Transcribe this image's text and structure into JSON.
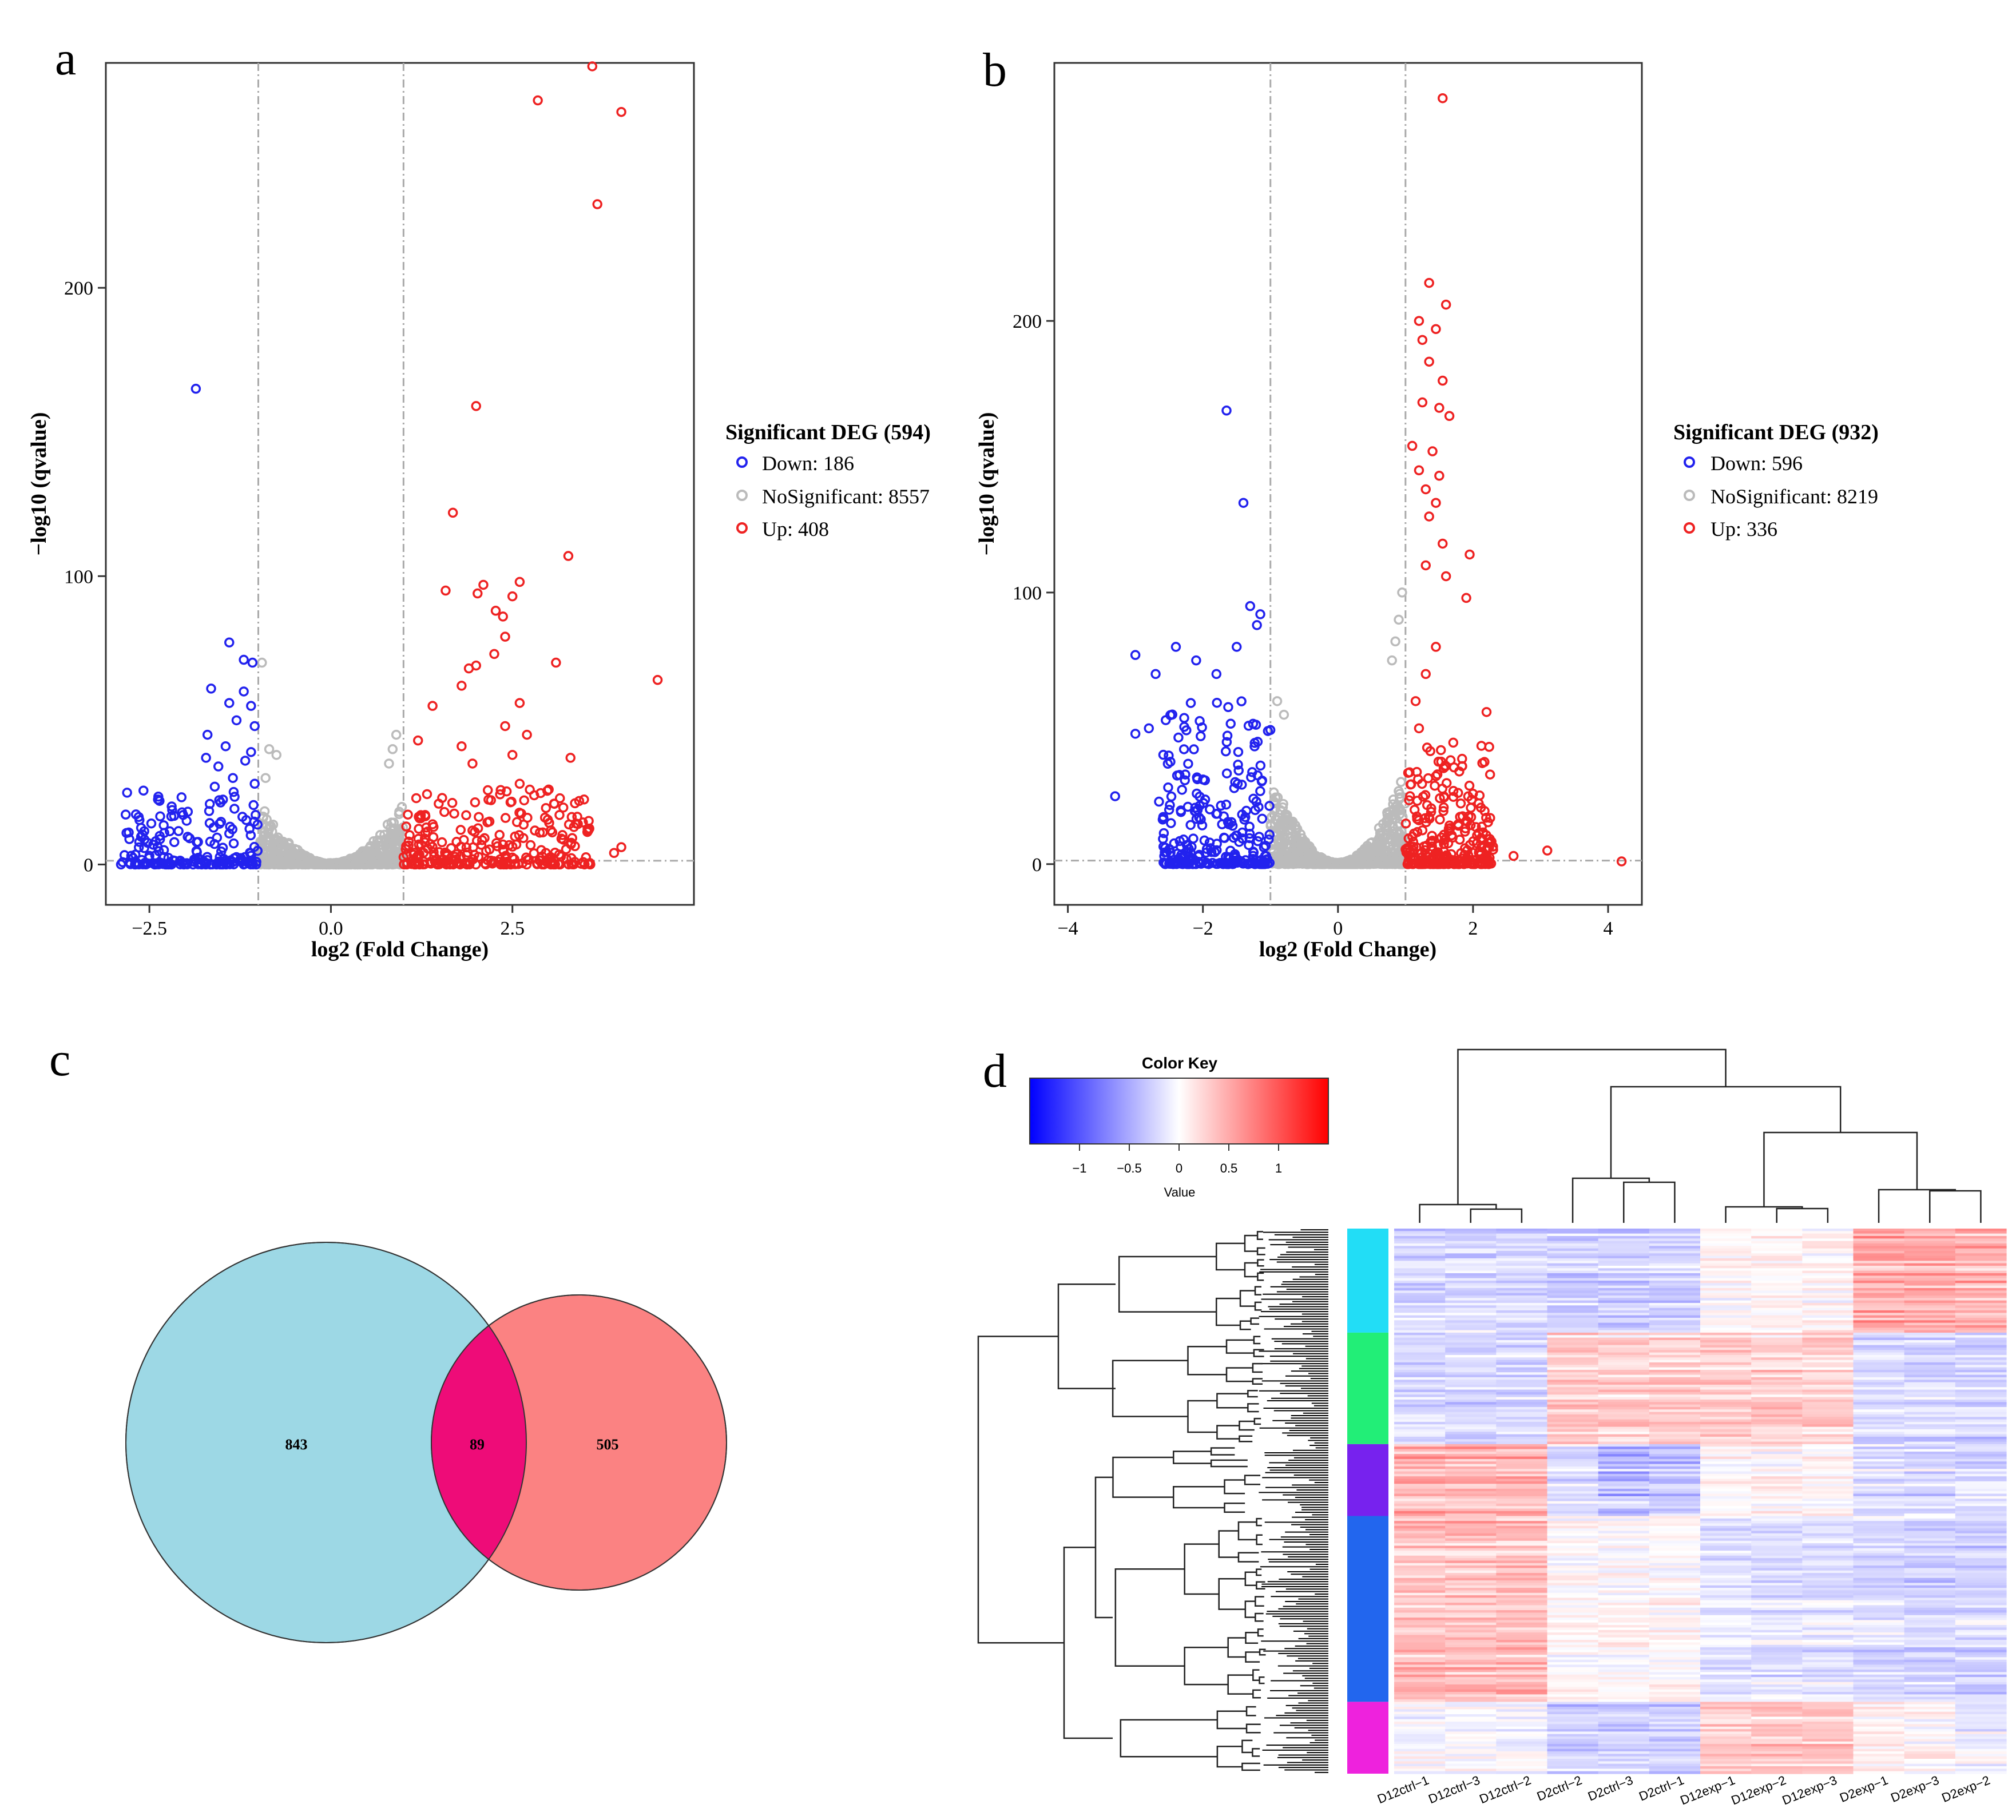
{
  "chart_data": [
    {
      "panel": "a",
      "type": "scatter",
      "subtype": "volcano",
      "xlabel": "log2 (Fold Change)",
      "ylabel": "−log10 (qvalue)",
      "xlim": [
        -3.1,
        5.0
      ],
      "ylim": [
        -14,
        278
      ],
      "xticks": [
        -2.5,
        0.0,
        2.5
      ],
      "xtick_labels": [
        "−2.5",
        "0.0",
        "2.5"
      ],
      "yticks": [
        0,
        100,
        200
      ],
      "ytick_labels": [
        "0",
        "100",
        "200"
      ],
      "thresholds": {
        "fc": [
          -1,
          1
        ],
        "q": 1.3
      },
      "legend": {
        "title": "Significant DEG (594)",
        "entries": [
          {
            "label": "Down: 186",
            "color": "#2222ee"
          },
          {
            "label": "NoSignificant: 8557",
            "color": "#bbbbbb"
          },
          {
            "label": "Up: 408",
            "color": "#ee2222"
          }
        ]
      },
      "series": [
        {
          "name": "Down",
          "color": "#2222ee",
          "n": 186,
          "highlight": [
            [
              -1.86,
              165
            ],
            [
              -1.4,
              77
            ],
            [
              -1.2,
              71
            ],
            [
              -1.08,
              70
            ],
            [
              -1.65,
              61
            ],
            [
              -1.2,
              60
            ],
            [
              -1.4,
              56
            ],
            [
              -1.1,
              55
            ],
            [
              -1.3,
              50
            ],
            [
              -1.05,
              48
            ],
            [
              -1.7,
              45
            ],
            [
              -1.45,
              41
            ],
            [
              -1.1,
              39
            ],
            [
              -1.72,
              37
            ],
            [
              -1.18,
              36
            ],
            [
              -1.55,
              34
            ],
            [
              -1.35,
              30
            ],
            [
              -1.05,
              28
            ],
            [
              -1.6,
              27
            ],
            [
              -2.3,
              5
            ],
            [
              -2.5,
              3
            ],
            [
              -2.75,
              3
            ]
          ],
          "spread": [
            -2.9,
            -1.0,
            0,
            26
          ]
        },
        {
          "name": "NoSignificant",
          "color": "#bbbbbb",
          "n": 8557,
          "highlight": [
            [
              -0.95,
              70
            ],
            [
              -0.85,
              40
            ],
            [
              -0.75,
              38
            ],
            [
              0.9,
              45
            ],
            [
              0.85,
              40
            ],
            [
              0.8,
              35
            ],
            [
              -0.9,
              30
            ]
          ],
          "spread": [
            -1.0,
            1.0,
            0,
            22
          ]
        },
        {
          "name": "Up",
          "color": "#ee2222",
          "n": 408,
          "highlight": [
            [
              3.6,
              278
            ],
            [
              2.85,
              265
            ],
            [
              4.0,
              261
            ],
            [
              3.67,
              229
            ],
            [
              2.0,
              159
            ],
            [
              1.68,
              122
            ],
            [
              3.27,
              107
            ],
            [
              2.6,
              98
            ],
            [
              2.1,
              97
            ],
            [
              2.02,
              94
            ],
            [
              1.58,
              95
            ],
            [
              2.5,
              93
            ],
            [
              2.27,
              88
            ],
            [
              2.37,
              86
            ],
            [
              2.4,
              79
            ],
            [
              2.25,
              73
            ],
            [
              3.1,
              70
            ],
            [
              2.0,
              69
            ],
            [
              1.9,
              68
            ],
            [
              4.5,
              64
            ],
            [
              1.8,
              62
            ],
            [
              2.6,
              56
            ],
            [
              1.4,
              55
            ],
            [
              2.4,
              48
            ],
            [
              2.7,
              45
            ],
            [
              1.2,
              43
            ],
            [
              1.8,
              41
            ],
            [
              2.5,
              38
            ],
            [
              3.3,
              37
            ],
            [
              1.95,
              35
            ],
            [
              2.6,
              28
            ],
            [
              3.0,
              26
            ],
            [
              2.8,
              24
            ],
            [
              4.0,
              6
            ],
            [
              3.9,
              4
            ]
          ],
          "spread": [
            1.0,
            3.6,
            0,
            26
          ]
        }
      ]
    },
    {
      "panel": "b",
      "type": "scatter",
      "subtype": "volcano",
      "xlabel": "log2 (Fold Change)",
      "ylabel": "−log10 (qvalue)",
      "xlim": [
        -4.2,
        4.5
      ],
      "ylim": [
        -15,
        295
      ],
      "xticks": [
        -4,
        -2,
        0,
        2,
        4
      ],
      "xtick_labels": [
        "−4",
        "−2",
        "0",
        "2",
        "4"
      ],
      "yticks": [
        0,
        100,
        200
      ],
      "ytick_labels": [
        "0",
        "100",
        "200"
      ],
      "thresholds": {
        "fc": [
          -1,
          1
        ],
        "q": 1.3
      },
      "legend": {
        "title": "Significant DEG (932)",
        "entries": [
          {
            "label": "Down: 596",
            "color": "#2222ee"
          },
          {
            "label": "NoSignificant: 8219",
            "color": "#bbbbbb"
          },
          {
            "label": "Up: 336",
            "color": "#ee2222"
          }
        ]
      },
      "series": [
        {
          "name": "Down",
          "color": "#2222ee",
          "n": 596,
          "highlight": [
            [
              -1.65,
              167
            ],
            [
              -1.4,
              133
            ],
            [
              -1.3,
              95
            ],
            [
              -1.15,
              92
            ],
            [
              -2.4,
              80
            ],
            [
              -3.0,
              77
            ],
            [
              -2.7,
              70
            ],
            [
              -2.1,
              75
            ],
            [
              -2.8,
              50
            ],
            [
              -3.0,
              48
            ],
            [
              -2.55,
              53
            ],
            [
              -3.3,
              25
            ],
            [
              -2.65,
              23
            ],
            [
              -2.5,
              20
            ],
            [
              -1.5,
              80
            ],
            [
              -1.8,
              70
            ],
            [
              -1.2,
              88
            ]
          ],
          "spread": [
            -2.6,
            -1.0,
            0,
            60
          ]
        },
        {
          "name": "NoSignificant",
          "color": "#bbbbbb",
          "n": 8219,
          "highlight": [
            [
              -0.9,
              60
            ],
            [
              -0.8,
              55
            ],
            [
              0.9,
              90
            ],
            [
              0.8,
              75
            ],
            [
              0.95,
              100
            ],
            [
              0.85,
              82
            ]
          ],
          "spread": [
            -1.0,
            1.0,
            0,
            35
          ]
        },
        {
          "name": "Up",
          "color": "#ee2222",
          "n": 336,
          "highlight": [
            [
              1.55,
              282
            ],
            [
              1.35,
              214
            ],
            [
              1.6,
              206
            ],
            [
              1.2,
              200
            ],
            [
              1.45,
              197
            ],
            [
              1.25,
              193
            ],
            [
              1.35,
              185
            ],
            [
              1.55,
              178
            ],
            [
              1.25,
              170
            ],
            [
              1.5,
              168
            ],
            [
              1.65,
              165
            ],
            [
              1.1,
              154
            ],
            [
              1.4,
              152
            ],
            [
              1.2,
              145
            ],
            [
              1.5,
              143
            ],
            [
              1.3,
              138
            ],
            [
              1.45,
              133
            ],
            [
              1.35,
              128
            ],
            [
              1.55,
              118
            ],
            [
              1.95,
              114
            ],
            [
              1.3,
              110
            ],
            [
              1.6,
              106
            ],
            [
              1.9,
              98
            ],
            [
              2.2,
              56
            ],
            [
              2.6,
              3
            ],
            [
              3.1,
              5
            ],
            [
              4.2,
              1
            ],
            [
              1.15,
              60
            ],
            [
              1.3,
              70
            ],
            [
              1.2,
              50
            ],
            [
              1.45,
              80
            ]
          ],
          "spread": [
            1.0,
            2.3,
            0,
            45
          ]
        }
      ]
    },
    {
      "panel": "c",
      "type": "venn",
      "sets": [
        {
          "color": "#9dd8e5",
          "only": 843
        },
        {
          "color": "#fb8282",
          "only": 505
        }
      ],
      "intersection": 89,
      "intersection_color": "#ee0c78",
      "labels": [
        "843",
        "89",
        "505"
      ]
    },
    {
      "panel": "d",
      "type": "heatmap",
      "color_key": {
        "title": "Color Key",
        "xlabel": "Value",
        "range": [
          -1.5,
          1.5
        ],
        "ticks": [
          -1,
          -0.5,
          0,
          0.5,
          1
        ],
        "tick_labels": [
          "−1",
          "−0.5",
          "0",
          "0.5",
          "1"
        ],
        "low": "#0000ff",
        "mid": "#ffffff",
        "high": "#ff0000"
      },
      "columns": [
        "D12ctrl−1",
        "D12ctrl−3",
        "D12ctrl−2",
        "D2ctrl−2",
        "D2ctrl−3",
        "D2ctrl−1",
        "D12exp−1",
        "D12exp−2",
        "D12exp−3",
        "D2exp−1",
        "D2exp−3",
        "D2exp−2"
      ],
      "row_clusters": [
        {
          "color": "#22ddf6",
          "size": 0.19,
          "pattern": [
            -0.25,
            -0.25,
            -0.25,
            -0.3,
            -0.3,
            -0.3,
            0.05,
            0.05,
            0.05,
            0.55,
            0.55,
            0.5
          ]
        },
        {
          "color": "#22ee77",
          "size": 0.205,
          "pattern": [
            -0.25,
            -0.25,
            -0.25,
            0.35,
            0.3,
            0.3,
            0.3,
            0.3,
            0.3,
            -0.25,
            -0.25,
            -0.25
          ]
        },
        {
          "color": "#7722ee",
          "size": 0.13,
          "pattern": [
            0.5,
            0.5,
            0.5,
            -0.2,
            -0.45,
            -0.4,
            0.05,
            0.05,
            0.05,
            -0.25,
            -0.25,
            -0.25
          ]
        },
        {
          "color": "#2266ee",
          "size": 0.345,
          "pattern": [
            0.45,
            0.45,
            0.45,
            0.05,
            0.05,
            0.05,
            -0.2,
            -0.2,
            -0.2,
            -0.25,
            -0.3,
            -0.3
          ]
        },
        {
          "color": "#ee22dd",
          "size": 0.13,
          "pattern": [
            -0.05,
            -0.05,
            -0.05,
            -0.35,
            -0.35,
            -0.35,
            0.35,
            0.35,
            0.35,
            0.05,
            0.05,
            -0.1
          ]
        }
      ]
    }
  ],
  "panel_labels": {
    "a": "a",
    "b": "b",
    "c": "c",
    "d": "d"
  }
}
